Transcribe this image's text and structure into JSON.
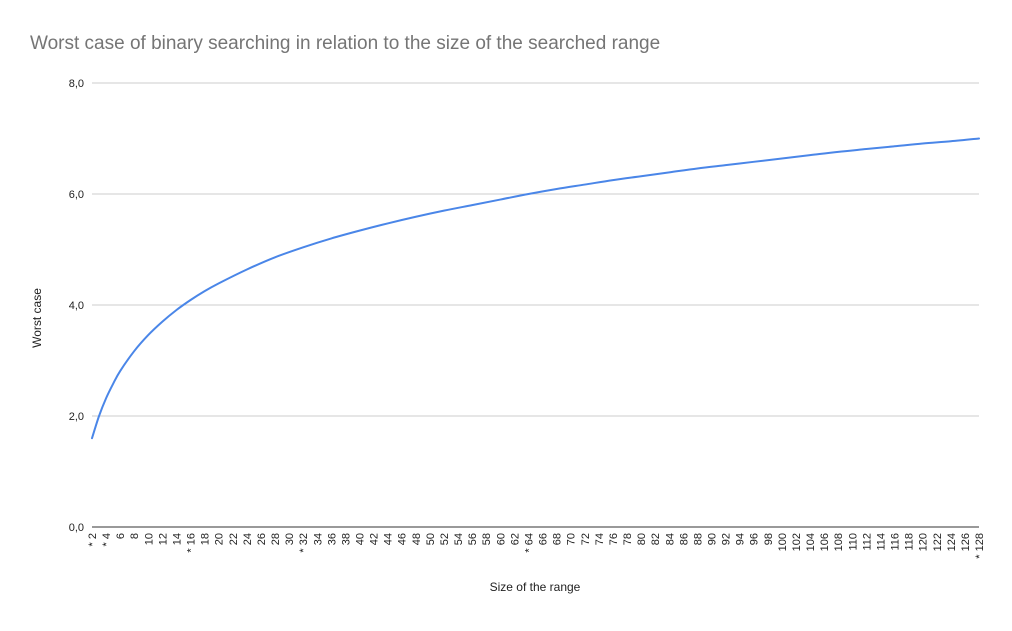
{
  "chart_data": {
    "type": "line",
    "title": "Worst case of binary searching in relation to the size of the searched range",
    "xlabel": "Size of the range",
    "ylabel": "Worst case",
    "xlim": [
      2,
      128
    ],
    "ylim": [
      0,
      8
    ],
    "y_ticks": [
      "0,0",
      "2,0",
      "4,0",
      "6,0",
      "8,0"
    ],
    "x_tick_labels": [
      "* 2",
      "* 4",
      "6",
      "8",
      "10",
      "12",
      "14",
      "* 16",
      "18",
      "20",
      "22",
      "24",
      "26",
      "28",
      "30",
      "* 32",
      "34",
      "36",
      "38",
      "40",
      "42",
      "44",
      "46",
      "48",
      "50",
      "52",
      "54",
      "56",
      "58",
      "60",
      "62",
      "* 64",
      "66",
      "68",
      "70",
      "72",
      "74",
      "76",
      "78",
      "80",
      "82",
      "84",
      "86",
      "88",
      "90",
      "92",
      "94",
      "96",
      "98",
      "100",
      "102",
      "104",
      "106",
      "108",
      "110",
      "112",
      "114",
      "116",
      "118",
      "120",
      "122",
      "124",
      "126",
      "* 128"
    ],
    "x_tick_values": [
      2,
      4,
      6,
      8,
      10,
      12,
      14,
      16,
      18,
      20,
      22,
      24,
      26,
      28,
      30,
      32,
      34,
      36,
      38,
      40,
      42,
      44,
      46,
      48,
      50,
      52,
      54,
      56,
      58,
      60,
      62,
      64,
      66,
      68,
      70,
      72,
      74,
      76,
      78,
      80,
      82,
      84,
      86,
      88,
      90,
      92,
      94,
      96,
      98,
      100,
      102,
      104,
      106,
      108,
      110,
      112,
      114,
      116,
      118,
      120,
      122,
      124,
      126,
      128
    ],
    "grid": true,
    "legend": "none",
    "series": [
      {
        "color": "#4a86e8",
        "x": [
          2,
          3,
          4,
          5,
          6,
          8,
          10,
          12,
          14,
          16,
          18,
          20,
          24,
          28,
          32,
          36,
          40,
          44,
          48,
          52,
          56,
          60,
          64,
          68,
          72,
          76,
          80,
          84,
          88,
          92,
          96,
          100,
          104,
          108,
          112,
          116,
          120,
          124,
          128
        ],
        "y": [
          1.6,
          2.0,
          2.32,
          2.58,
          2.81,
          3.17,
          3.46,
          3.7,
          3.91,
          4.09,
          4.25,
          4.39,
          4.64,
          4.86,
          5.04,
          5.2,
          5.34,
          5.47,
          5.59,
          5.7,
          5.8,
          5.9,
          6.0,
          6.09,
          6.17,
          6.25,
          6.32,
          6.39,
          6.46,
          6.52,
          6.58,
          6.64,
          6.7,
          6.76,
          6.81,
          6.86,
          6.91,
          6.95,
          7.0
        ]
      }
    ]
  }
}
